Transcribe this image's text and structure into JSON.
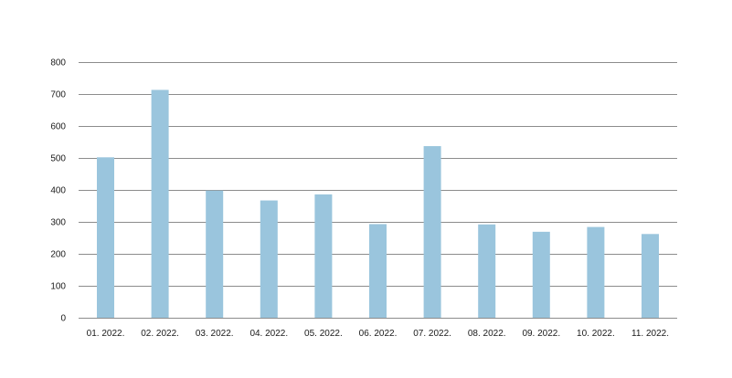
{
  "chart_data": {
    "type": "bar",
    "categories": [
      "01. 2022.",
      "02. 2022.",
      "03. 2022.",
      "04. 2022.",
      "05. 2022.",
      "06. 2022.",
      "07. 2022.",
      "08. 2022.",
      "09. 2022.",
      "10. 2022.",
      "11. 2022."
    ],
    "values": [
      502,
      713,
      398,
      367,
      386,
      293,
      537,
      292,
      269,
      284,
      262
    ],
    "title": "",
    "xlabel": "",
    "ylabel": "",
    "ylim": [
      0,
      800
    ],
    "yticks": [
      0,
      100,
      200,
      300,
      400,
      500,
      600,
      700,
      800
    ],
    "grid": true,
    "legend": "none",
    "bar_color": "#9ac5dd",
    "grid_color": "#8c8c8c"
  }
}
